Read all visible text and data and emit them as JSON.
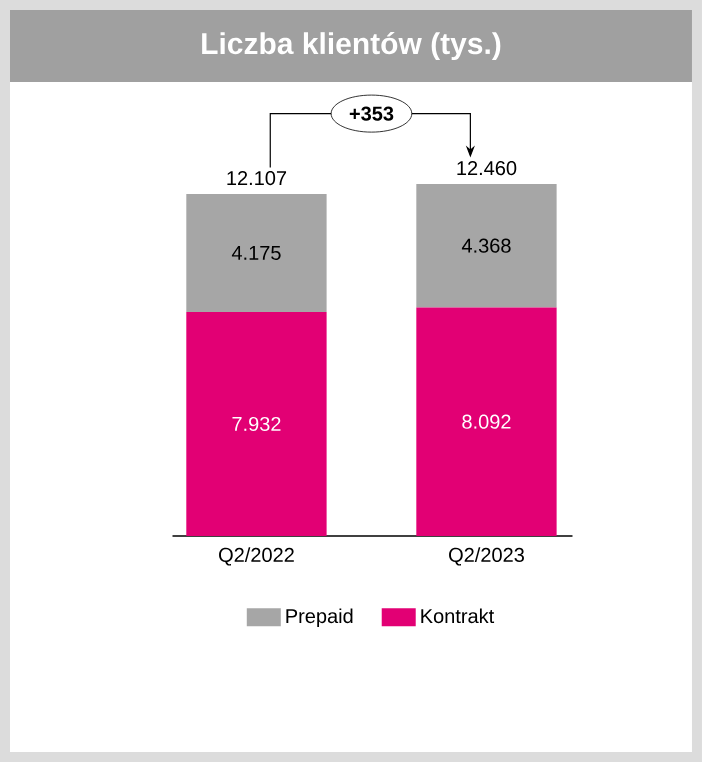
{
  "chart_data": {
    "type": "bar",
    "stacked": true,
    "title": "Liczba klientów (tys.)",
    "categories": [
      "Q2/2022",
      "Q2/2023"
    ],
    "series": [
      {
        "name": "Kontrakt",
        "color": "#e20074",
        "values": [
          7932,
          8092
        ],
        "value_labels": [
          "7.932",
          "8.092"
        ]
      },
      {
        "name": "Prepaid",
        "color": "#a6a6a6",
        "values": [
          4175,
          4368
        ],
        "value_labels": [
          "4.175",
          "4.368"
        ]
      }
    ],
    "totals": [
      "12.107",
      "12.460"
    ],
    "annotations": [
      "+353"
    ],
    "legend": "bottom"
  }
}
